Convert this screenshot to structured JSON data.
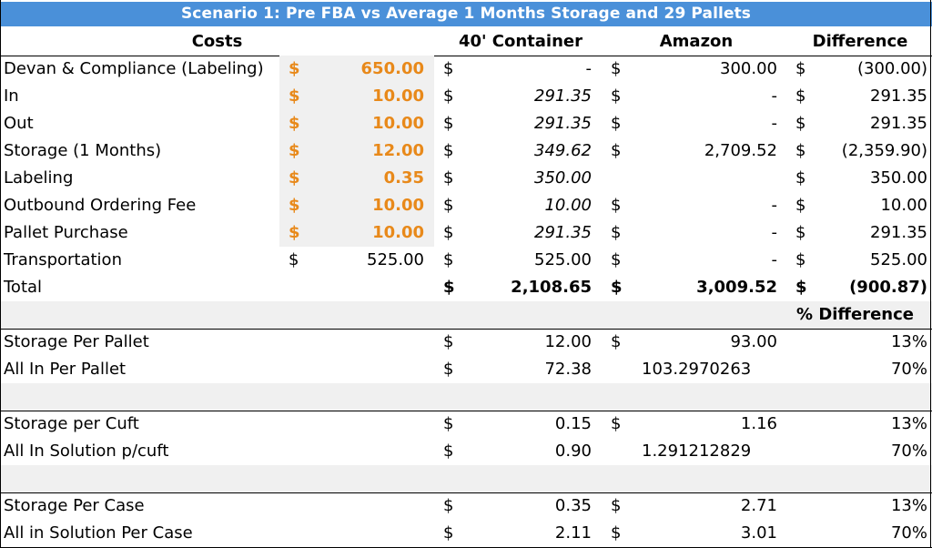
{
  "title": "Scenario 1: Pre FBA vs Average 1 Months Storage and 29 Pallets",
  "header": {
    "costs": "Costs",
    "container": "40' Container",
    "amazon": "Amazon",
    "difference": "Difference"
  },
  "currency": "$",
  "colors": {
    "title_bg": "#4a90d9",
    "orange": "#e8891a",
    "shade": "#f0f0f0"
  },
  "cost_rows": [
    {
      "label": "Devan & Compliance (Labeling)",
      "rate": "650.00",
      "container": "-",
      "amazon": "300.00",
      "diff": "(300.00)"
    },
    {
      "label": "In",
      "rate": "10.00",
      "container": "291.35",
      "amazon": "-",
      "diff": "291.35"
    },
    {
      "label": "Out",
      "rate": "10.00",
      "container": "291.35",
      "amazon": "-",
      "diff": "291.35"
    },
    {
      "label": "Storage (1 Months)",
      "rate": "12.00",
      "container": "349.62",
      "amazon": "2,709.52",
      "diff": "(2,359.90)"
    },
    {
      "label": "Labeling",
      "rate": "0.35",
      "container": "350.00",
      "amazon": "",
      "diff": "350.00"
    },
    {
      "label": "Outbound Ordering Fee",
      "rate": "10.00",
      "container": "10.00",
      "amazon": "-",
      "diff": "10.00"
    },
    {
      "label": "Pallet Purchase",
      "rate": "10.00",
      "container": "291.35",
      "amazon": "-",
      "diff": "291.35"
    }
  ],
  "transportation": {
    "label": "Transportation",
    "rate": "525.00",
    "container": "525.00",
    "amazon": "-",
    "diff": "525.00"
  },
  "total": {
    "label": "Total",
    "container": "2,108.65",
    "amazon": "3,009.52",
    "diff": "(900.87)"
  },
  "pct_header": "% Difference",
  "pallet": [
    {
      "label": "Storage Per Pallet",
      "container": "12.00",
      "amazon": "93.00",
      "amazon_sym": "$",
      "pct": "13%"
    },
    {
      "label": "All In Per Pallet",
      "container": "72.38",
      "amazon": "103.2970263",
      "amazon_sym": "",
      "pct": "70%"
    }
  ],
  "cuft": [
    {
      "label": "Storage per Cuft",
      "container": "0.15",
      "amazon": "1.16",
      "amazon_sym": "$",
      "pct": "13%"
    },
    {
      "label": "All In Solution p/cuft",
      "container": "0.90",
      "amazon": "1.291212829",
      "amazon_sym": "",
      "pct": "70%"
    }
  ],
  "case": [
    {
      "label": "Storage Per Case",
      "container": "0.35",
      "amazon": "2.71",
      "amazon_sym": "$",
      "pct": "13%"
    },
    {
      "label": "All in Solution Per Case",
      "container": "2.11",
      "amazon": "3.01",
      "amazon_sym": "$",
      "pct": "70%"
    }
  ]
}
